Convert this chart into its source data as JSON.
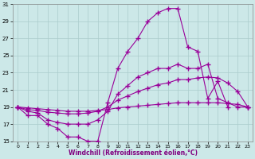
{
  "background_color": "#cce8e8",
  "grid_color": "#aacccc",
  "line_color": "#990099",
  "marker": "+",
  "markersize": 4,
  "linewidth": 0.8,
  "ylim": [
    15,
    31
  ],
  "xlim": [
    -0.5,
    23.5
  ],
  "yticks": [
    15,
    17,
    19,
    21,
    23,
    25,
    27,
    29,
    31
  ],
  "xticks": [
    0,
    1,
    2,
    3,
    4,
    5,
    6,
    7,
    8,
    9,
    10,
    11,
    12,
    13,
    14,
    15,
    16,
    17,
    18,
    19,
    20,
    21,
    22,
    23
  ],
  "xlabel": "Windchill (Refroidissement éolien,°C)",
  "line1_x": [
    0,
    1,
    2,
    3,
    4,
    5,
    6,
    7,
    8,
    9,
    10,
    11,
    12,
    13,
    14,
    15,
    16,
    17,
    18,
    19,
    20,
    21,
    22
  ],
  "line1_y": [
    19,
    18,
    18,
    17,
    16.5,
    15.5,
    15.5,
    15,
    15,
    19.5,
    23.5,
    25.5,
    27,
    29,
    30,
    30.5,
    30.5,
    26,
    25.5,
    20,
    22,
    19,
    null
  ],
  "line2_x": [
    0,
    1,
    2,
    3,
    4,
    5,
    6,
    7,
    8,
    9,
    10,
    11,
    12,
    13,
    14,
    15,
    16,
    17,
    18,
    19,
    20,
    21,
    22,
    23
  ],
  "line2_y": [
    19,
    18.5,
    18.3,
    17.5,
    17.2,
    17.0,
    17.0,
    17.0,
    17.5,
    18.5,
    20.5,
    21.5,
    22.5,
    23.0,
    23.5,
    23.5,
    24.0,
    23.5,
    23.5,
    24.0,
    20.0,
    19.5,
    19.0,
    19
  ],
  "line3_x": [
    0,
    1,
    2,
    3,
    4,
    5,
    6,
    7,
    8,
    9,
    10,
    11,
    12,
    13,
    14,
    15,
    16,
    17,
    18,
    19,
    20,
    21,
    22,
    23
  ],
  "line3_y": [
    19,
    18.7,
    18.6,
    18.4,
    18.3,
    18.2,
    18.2,
    18.3,
    18.5,
    19.0,
    19.8,
    20.3,
    20.8,
    21.2,
    21.6,
    21.8,
    22.2,
    22.2,
    22.4,
    22.5,
    22.4,
    21.8,
    20.8,
    19
  ],
  "line4_x": [
    0,
    1,
    2,
    3,
    4,
    5,
    6,
    7,
    8,
    9,
    10,
    11,
    12,
    13,
    14,
    15,
    16,
    17,
    18,
    19,
    20,
    21,
    22,
    23
  ],
  "line4_y": [
    19,
    18.9,
    18.8,
    18.7,
    18.6,
    18.5,
    18.5,
    18.5,
    18.6,
    18.7,
    18.9,
    19.0,
    19.1,
    19.2,
    19.3,
    19.4,
    19.5,
    19.5,
    19.5,
    19.5,
    19.5,
    19.4,
    19.3,
    19
  ]
}
